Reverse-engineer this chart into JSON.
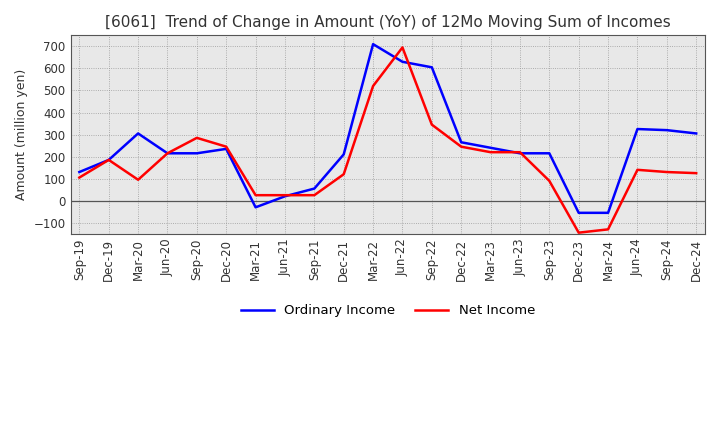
{
  "title": "[6061]  Trend of Change in Amount (YoY) of 12Mo Moving Sum of Incomes",
  "ylabel": "Amount (million yen)",
  "x_labels": [
    "Sep-19",
    "Dec-19",
    "Mar-20",
    "Jun-20",
    "Sep-20",
    "Dec-20",
    "Mar-21",
    "Jun-21",
    "Sep-21",
    "Dec-21",
    "Mar-22",
    "Jun-22",
    "Sep-22",
    "Dec-22",
    "Mar-23",
    "Jun-23",
    "Sep-23",
    "Dec-23",
    "Mar-24",
    "Jun-24",
    "Sep-24",
    "Dec-24"
  ],
  "ordinary_income": [
    130,
    185,
    305,
    215,
    215,
    235,
    -30,
    20,
    55,
    210,
    710,
    630,
    605,
    265,
    240,
    215,
    215,
    -55,
    -55,
    325,
    320,
    305
  ],
  "net_income": [
    105,
    185,
    95,
    215,
    285,
    245,
    25,
    25,
    25,
    120,
    520,
    695,
    345,
    245,
    220,
    220,
    90,
    -145,
    -130,
    140,
    130,
    125
  ],
  "ordinary_color": "#0000ff",
  "net_color": "#ff0000",
  "ylim": [
    -150,
    750
  ],
  "yticks": [
    -100,
    0,
    100,
    200,
    300,
    400,
    500,
    600,
    700
  ],
  "plot_bg_color": "#e8e8e8",
  "fig_bg_color": "#ffffff",
  "grid_color": "#999999",
  "title_color": "#333333",
  "line_width": 1.8,
  "title_fontsize": 11,
  "axis_fontsize": 9,
  "tick_fontsize": 8.5,
  "legend_fontsize": 9.5
}
